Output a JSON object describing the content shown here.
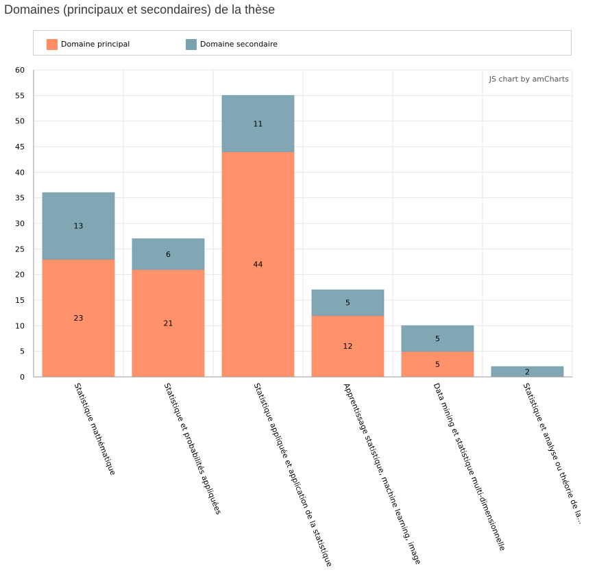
{
  "page": {
    "title": "Domaines (principaux et secondaires) de la thèse"
  },
  "legend": {
    "items": [
      {
        "label": "Domaine principal",
        "color": "#FF8C63"
      },
      {
        "label": "Domaine secondaire",
        "color": "#7AA1B0"
      }
    ]
  },
  "credit": {
    "text": "JS chart by amCharts"
  },
  "chart_data": {
    "type": "bar",
    "stacked": true,
    "title": "Domaines (principaux et secondaires) de la thèse",
    "xlabel": "",
    "ylabel": "",
    "ylim": [
      0,
      60
    ],
    "yticks": [
      0,
      5,
      10,
      15,
      20,
      25,
      30,
      35,
      40,
      45,
      50,
      55,
      60
    ],
    "grid": true,
    "legend_position": "top",
    "categories": [
      "Statistique mathématique",
      "Statistique et probabilités appliquées",
      "Statistique appliquée et application de la statistique",
      "Apprentissage statistique, machine learning, image",
      "Data mining et statistique multi-dimensionnelle",
      "Statistique et analyse ou théorie de la..."
    ],
    "category_labels_visible": [
      "Statistique mathématique",
      "Statistique et probabilités appliquées",
      "Statistique appliquée et application de la statistique",
      "Apprentissage statistique, machine learning, image",
      "Data mining et statistique multi-dimensionnelle",
      "Statistique et analyse ou théorie de la..."
    ],
    "series": [
      {
        "name": "Domaine principal",
        "color": "#FF8C63",
        "values": [
          23,
          21,
          44,
          12,
          5,
          0
        ],
        "data_labels": [
          "23",
          "21",
          "44",
          "12",
          "5",
          ""
        ]
      },
      {
        "name": "Domaine secondaire",
        "color": "#7AA1B0",
        "values": [
          13,
          6,
          11,
          5,
          5,
          2
        ],
        "data_labels": [
          "13",
          "6",
          "11",
          "5",
          "5",
          "2"
        ]
      }
    ]
  }
}
